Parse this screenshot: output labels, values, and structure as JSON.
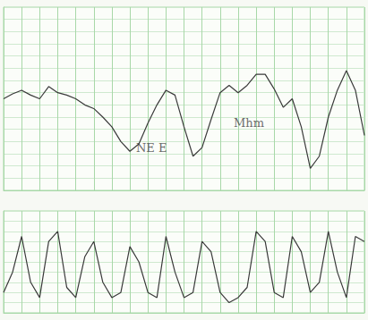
{
  "chart_data": [
    {
      "type": "line",
      "grid": true,
      "tick_labels": false,
      "color": "#3a3a3a",
      "xlim": [
        0,
        20
      ],
      "xticks": [
        0,
        1,
        2,
        3,
        4,
        5,
        6,
        7,
        8,
        9,
        10,
        11,
        12,
        13,
        14,
        15,
        16,
        17,
        18,
        19,
        20
      ],
      "ylim": [
        60,
        210
      ],
      "yticks": [
        60,
        70,
        80,
        90,
        100,
        110,
        120,
        130,
        140,
        150,
        160,
        170,
        180,
        190,
        200,
        210
      ],
      "x": [
        0,
        0.5,
        1,
        1.5,
        2,
        2.5,
        3,
        3.5,
        4,
        4.5,
        5,
        5.5,
        6,
        6.5,
        7,
        7.5,
        8,
        8.5,
        9,
        9.5,
        10,
        10.5,
        11,
        11.5,
        12,
        12.5,
        13,
        13.5,
        14,
        14.5,
        15,
        15.5,
        16,
        16.5,
        17,
        17.5,
        18,
        18.5,
        19,
        19.5,
        20
      ],
      "values": [
        135,
        139,
        142,
        138,
        135,
        145,
        140,
        138,
        135,
        130,
        127,
        120,
        112,
        100,
        92,
        98,
        115,
        130,
        142,
        138,
        112,
        88,
        95,
        118,
        140,
        146,
        140,
        146,
        155,
        155,
        143,
        128,
        135,
        112,
        78,
        88,
        120,
        142,
        158,
        142,
        105
      ],
      "annotations": [
        {
          "text": "NE E",
          "x": 8.2,
          "y": 95
        },
        {
          "text": "Mhm",
          "x": 13.6,
          "y": 115
        }
      ]
    },
    {
      "type": "line",
      "grid": true,
      "tick_labels": false,
      "color": "#3a3a3a",
      "xlim": [
        0,
        20
      ],
      "xticks": [
        0,
        1,
        2,
        3,
        4,
        5,
        6,
        7,
        8,
        9,
        10,
        11,
        12,
        13,
        14,
        15,
        16,
        17,
        18,
        19,
        20
      ],
      "ylim": [
        0,
        100
      ],
      "yticks": [
        0,
        10,
        20,
        30,
        40,
        50,
        60,
        70,
        80,
        90,
        100
      ],
      "x": [
        0,
        0.5,
        1,
        1.5,
        2,
        2.5,
        3,
        3.5,
        4,
        4.5,
        5,
        5.5,
        6,
        6.5,
        7,
        7.5,
        8,
        8.5,
        9,
        9.5,
        10,
        10.5,
        11,
        11.5,
        12,
        12.5,
        13,
        13.5,
        14,
        14.5,
        15,
        15.5,
        16,
        16.5,
        17,
        17.5,
        18,
        18.5,
        19,
        19.5,
        20
      ],
      "values": [
        20,
        40,
        75,
        30,
        15,
        70,
        80,
        25,
        15,
        55,
        70,
        30,
        15,
        20,
        65,
        50,
        20,
        15,
        75,
        40,
        15,
        20,
        70,
        60,
        20,
        10,
        15,
        25,
        80,
        70,
        20,
        15,
        75,
        60,
        20,
        30,
        80,
        40,
        15,
        75,
        70
      ]
    }
  ]
}
